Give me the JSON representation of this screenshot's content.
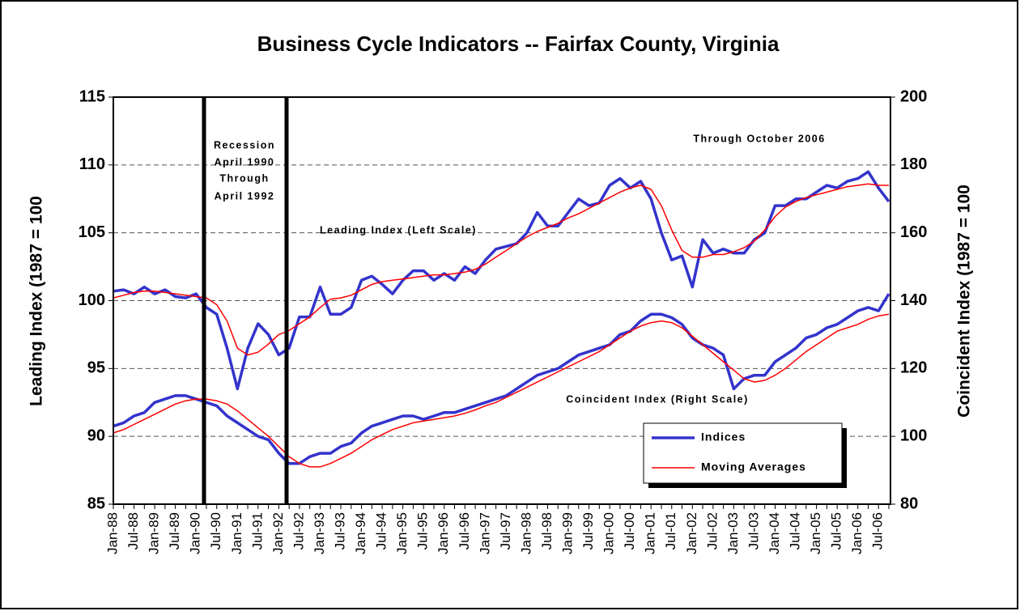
{
  "chart_data": {
    "type": "line",
    "title": "Business Cycle Indicators -- Fairfax County, Virginia",
    "ylabel": "Leading Index (1987 = 100",
    "y2label": "Coincident Index (1987 = 100",
    "annotations": [
      "Recession",
      "April 1990",
      "Through",
      "April 1992",
      "Through October 2006",
      "Leading Index (Left Scale)",
      "Coincident Index (Right Scale)"
    ],
    "categories": [
      "Jan-88",
      null,
      "Jul-88",
      null,
      "Jan-89",
      null,
      "Jul-89",
      null,
      "Jan-90",
      null,
      "Jul-90",
      null,
      "Jan-91",
      null,
      "Jul-91",
      null,
      "Jan-92",
      null,
      "Jul-92",
      null,
      "Jan-93",
      null,
      "Jul-93",
      null,
      "Jan-94",
      null,
      "Jul-94",
      null,
      "Jan-95",
      null,
      "Jul-95",
      null,
      "Jan-96",
      null,
      "Jul-96",
      null,
      "Jan-97",
      null,
      "Jul-97",
      null,
      "Jan-98",
      null,
      "Jul-98",
      null,
      "Jan-99",
      null,
      "Jul-99",
      null,
      "Jan-00",
      null,
      "Jul-00",
      null,
      "Jan-01",
      null,
      "Jul-01",
      null,
      "Jan-02",
      null,
      "Jul-02",
      null,
      "Jan-03",
      null,
      "Jul-03",
      null,
      "Jan-04",
      null,
      "Jul-04",
      null,
      "Jan-05",
      null,
      "Jul-05",
      null,
      "Jan-06",
      null,
      "Jul-06",
      null
    ],
    "legend": [
      {
        "name": "Indices",
        "color": "#3333cc"
      },
      {
        "name": "Moving Averages",
        "color": "#ff0000"
      }
    ],
    "series": [
      {
        "color": "#3333cc",
        "width": 3.5,
        "values": [
          100.7,
          100.8,
          100.5,
          101,
          100.5,
          100.8,
          100.3,
          100.2,
          100.5,
          99.5,
          99,
          96.5,
          93.5,
          96.5,
          98.3,
          97.5,
          96,
          96.5,
          98.8,
          98.8,
          101,
          99,
          99,
          99.5,
          101.5,
          101.8,
          101.2,
          100.5,
          101.5,
          102.2,
          102.2,
          101.5,
          102,
          101.5,
          102.5,
          102,
          103,
          103.8,
          104,
          104.2,
          105,
          106.5,
          105.5,
          105.5,
          106.5,
          107.5,
          107,
          107.2,
          108.5,
          109,
          108.3,
          108.8,
          107.5,
          105,
          103,
          103.3,
          101,
          104.5,
          103.5,
          103.8,
          103.5,
          103.5,
          104.5,
          105,
          107,
          107,
          107.5,
          107.5,
          108,
          108.5,
          108.3,
          108.8,
          109,
          109.5,
          108.3,
          107.3
        ]
      },
      {
        "color": "#ff0000",
        "width": 1.5,
        "values": [
          100.2,
          100.4,
          100.6,
          100.7,
          100.7,
          100.6,
          100.5,
          100.4,
          100.3,
          100.2,
          99.7,
          98.5,
          96.5,
          96,
          96.2,
          96.8,
          97.5,
          97.8,
          98.3,
          98.8,
          99.5,
          100.1,
          100.2,
          100.4,
          100.8,
          101.2,
          101.4,
          101.5,
          101.6,
          101.7,
          101.8,
          101.9,
          101.9,
          102,
          102.1,
          102.3,
          102.7,
          103.2,
          103.7,
          104.2,
          104.7,
          105.1,
          105.4,
          105.7,
          106.1,
          106.4,
          106.8,
          107.2,
          107.6,
          108,
          108.3,
          108.5,
          108.2,
          107,
          105.2,
          103.7,
          103.2,
          103.2,
          103.4,
          103.4,
          103.6,
          103.9,
          104.4,
          105.2,
          106.2,
          106.9,
          107.3,
          107.6,
          107.8,
          108,
          108.2,
          108.4,
          108.5,
          108.6,
          108.5,
          108.5
        ]
      },
      {
        "color": "#3333cc",
        "width": 3.5,
        "axis": "y2",
        "values": [
          103,
          104,
          106,
          107,
          110,
          111,
          112,
          112,
          111,
          110,
          109,
          106,
          104,
          102,
          100,
          99,
          95,
          92,
          92,
          94,
          95,
          95,
          97,
          98,
          101,
          103,
          104,
          105,
          106,
          106,
          105,
          106,
          107,
          107,
          108,
          109,
          110,
          111,
          112,
          114,
          116,
          118,
          119,
          120,
          122,
          124,
          125,
          126,
          127,
          130,
          131,
          134,
          136,
          136,
          135,
          133,
          129,
          127,
          126,
          124,
          114,
          117,
          118,
          118,
          122,
          124,
          126,
          129,
          130,
          132,
          133,
          135,
          137,
          138,
          137,
          142
        ]
      },
      {
        "color": "#ff0000",
        "width": 1.5,
        "axis": "y2",
        "values": [
          101,
          102,
          103.5,
          105,
          106.5,
          108,
          109.5,
          110.5,
          111,
          111,
          110.5,
          109.5,
          107.5,
          105,
          102.5,
          100,
          97,
          94,
          92,
          91,
          91,
          92,
          93.5,
          95,
          97,
          99,
          100.5,
          102,
          103,
          104,
          104.5,
          105,
          105.5,
          106,
          106.8,
          107.8,
          109,
          110,
          111.5,
          113,
          114.5,
          116,
          117.5,
          119,
          120.5,
          122,
          123.5,
          125,
          127,
          129,
          131,
          132.5,
          133.5,
          134,
          133.5,
          132,
          129.5,
          127,
          124.5,
          122,
          119.5,
          117,
          116,
          116.5,
          118,
          120,
          122.5,
          125,
          127,
          129,
          131,
          132,
          133,
          134.5,
          135.5,
          136
        ]
      }
    ],
    "ylim": [
      85,
      115
    ],
    "yticks": [
      85,
      90,
      95,
      100,
      105,
      110,
      115
    ],
    "y2lim": [
      80,
      200
    ],
    "y2ticks": [
      80,
      100,
      120,
      140,
      160,
      180,
      200
    ],
    "grid": true
  }
}
